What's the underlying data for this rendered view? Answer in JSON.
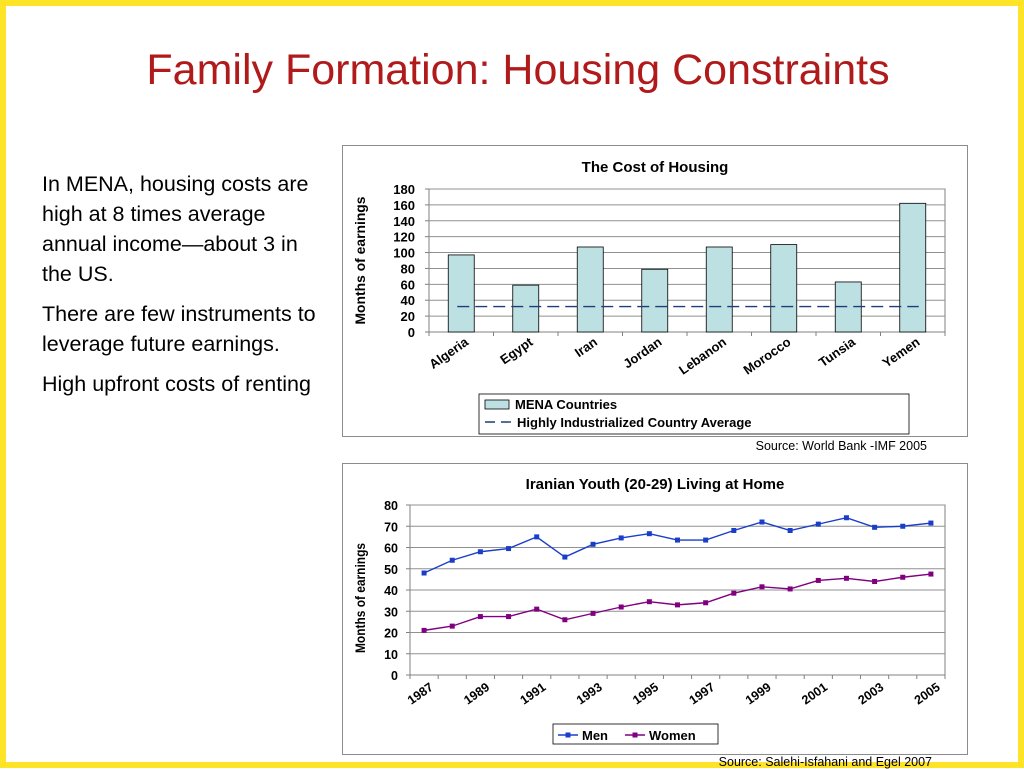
{
  "slide": {
    "title": "Family Formation: Housing Constraints",
    "bullets": [
      "In MENA, housing costs are high at 8 times average annual income—about 3 in the US.",
      "There are few instruments to leverage future earnings.",
      "High upfront costs of renting"
    ],
    "source_1": "Source: World Bank -IMF 2005",
    "source_2": "Source: Salehi-Isfahani and Egel 2007"
  },
  "colors": {
    "border": "#ffe326",
    "title": "#b01a1a",
    "bar_fill": "#bde0e3",
    "dash_line": "#1f3c7a",
    "men": "#1a3ec8",
    "women": "#800080"
  },
  "chart_data": [
    {
      "type": "bar",
      "title": "The Cost of Housing",
      "ylabel": "Months of earnings",
      "xlabel": "",
      "ylim": [
        0,
        180
      ],
      "yticks": [
        0,
        20,
        40,
        60,
        80,
        100,
        120,
        140,
        160,
        180
      ],
      "categories": [
        "Algeria",
        "Egypt",
        "Iran",
        "Jordan",
        "Lebanon",
        "Morocco",
        "Tunsia",
        "Yemen"
      ],
      "series": [
        {
          "name": "MENA Countries",
          "values": [
            97,
            59,
            107,
            79,
            107,
            110,
            63,
            162
          ]
        }
      ],
      "reference_line": {
        "name": "Highly Industrialized Country Average",
        "value": 32
      },
      "grid": true,
      "legend": "bottom"
    },
    {
      "type": "line",
      "title": "Iranian Youth (20-29) Living at Home",
      "ylabel": "Months of earnings",
      "xlabel": "",
      "ylim": [
        0,
        80
      ],
      "yticks": [
        0,
        10,
        20,
        30,
        40,
        50,
        60,
        70,
        80
      ],
      "x": [
        1987,
        1988,
        1989,
        1990,
        1991,
        1992,
        1993,
        1994,
        1995,
        1996,
        1997,
        1998,
        1999,
        2000,
        2001,
        2002,
        2003,
        2004,
        2005
      ],
      "xtick_labels": [
        "1987",
        "1989",
        "1991",
        "1993",
        "1995",
        "1997",
        "1999",
        "2001",
        "2003",
        "2005"
      ],
      "series": [
        {
          "name": "Men",
          "values": [
            48,
            54,
            58,
            59.5,
            65,
            55.5,
            61.5,
            64.5,
            66.5,
            63.5,
            63.5,
            68,
            72,
            68,
            71,
            74,
            69.5,
            70,
            71.5
          ]
        },
        {
          "name": "Women",
          "values": [
            21,
            23,
            27.5,
            27.5,
            31,
            26,
            29,
            32,
            34.5,
            33,
            34,
            38.5,
            41.5,
            40.5,
            44.5,
            45.5,
            44,
            46,
            47.5
          ]
        }
      ],
      "grid": true,
      "legend": "bottom"
    }
  ]
}
